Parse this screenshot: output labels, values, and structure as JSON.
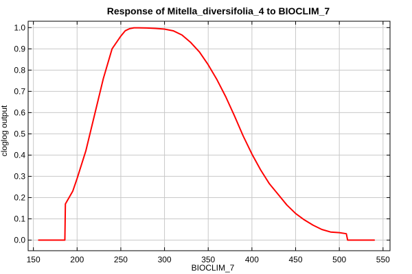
{
  "chart_data": {
    "type": "line",
    "title": "Response of Mitella_diversifolia_4 to BIOCLIM_7",
    "xlabel": "BIOCLIM_7",
    "ylabel": "cloglog output",
    "xlim": [
      144,
      558
    ],
    "ylim": [
      -0.05,
      1.03
    ],
    "x_ticks": [
      150,
      200,
      250,
      300,
      350,
      400,
      450,
      500,
      550
    ],
    "y_ticks": [
      0.0,
      0.1,
      0.2,
      0.3,
      0.4,
      0.5,
      0.6,
      0.7,
      0.8,
      0.9,
      1.0
    ],
    "x_tick_labels": [
      "150",
      "200",
      "250",
      "300",
      "350",
      "400",
      "450",
      "500",
      "550"
    ],
    "y_tick_labels": [
      "0.0",
      "0.1",
      "0.2",
      "0.3",
      "0.4",
      "0.5",
      "0.6",
      "0.7",
      "0.8",
      "0.9",
      "1.0"
    ],
    "grid": true,
    "series": [
      {
        "color": "#ff0000",
        "x": [
          156,
          186,
          186.6,
          195,
          200,
          210,
          220,
          230,
          240,
          250,
          255,
          260,
          265,
          270,
          280,
          290,
          300,
          310,
          320,
          330,
          340,
          350,
          360,
          370,
          380,
          390,
          400,
          410,
          420,
          430,
          440,
          450,
          460,
          470,
          480,
          490,
          500,
          508,
          509.5,
          540
        ],
        "y": [
          0.0,
          0.0,
          0.17,
          0.23,
          0.29,
          0.42,
          0.59,
          0.76,
          0.9,
          0.96,
          0.985,
          0.995,
          0.999,
          0.999,
          0.998,
          0.996,
          0.993,
          0.985,
          0.965,
          0.93,
          0.885,
          0.825,
          0.755,
          0.675,
          0.585,
          0.49,
          0.405,
          0.33,
          0.265,
          0.215,
          0.165,
          0.125,
          0.095,
          0.07,
          0.05,
          0.038,
          0.035,
          0.03,
          0.0,
          0.0
        ]
      }
    ]
  }
}
